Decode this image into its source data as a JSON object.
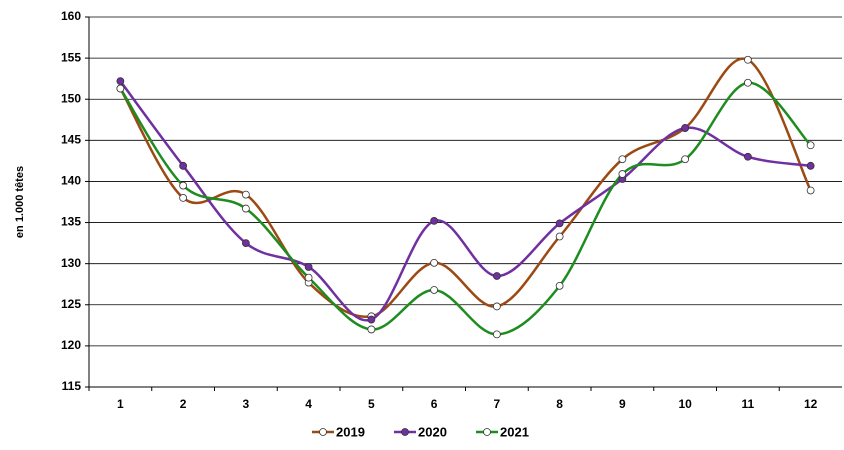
{
  "chart_data": {
    "type": "line",
    "y_label": "en 1.000 têtes",
    "categories": [
      "1",
      "2",
      "3",
      "4",
      "5",
      "6",
      "7",
      "8",
      "9",
      "10",
      "11",
      "12"
    ],
    "series": [
      {
        "name": "2019",
        "color": "#9c4a14",
        "marker": "white",
        "values": [
          151.3,
          138.0,
          138.4,
          127.7,
          123.6,
          130.1,
          124.8,
          133.3,
          142.7,
          146.5,
          154.8,
          138.9
        ]
      },
      {
        "name": "2020",
        "color": "#7030a0",
        "marker": "filled",
        "values": [
          152.2,
          141.9,
          132.5,
          129.6,
          123.2,
          135.2,
          128.5,
          134.9,
          140.3,
          146.5,
          143.0,
          141.9
        ]
      },
      {
        "name": "2021",
        "color": "#1e8c1e",
        "marker": "white",
        "values": [
          151.3,
          139.5,
          136.7,
          128.3,
          122.0,
          126.8,
          121.4,
          127.3,
          140.9,
          142.7,
          152.0,
          144.4
        ]
      }
    ],
    "ylim": [
      115,
      160
    ],
    "yticks": [
      115,
      120,
      125,
      130,
      135,
      140,
      145,
      150,
      155,
      160
    ],
    "grid": true,
    "legend": "bottom"
  }
}
